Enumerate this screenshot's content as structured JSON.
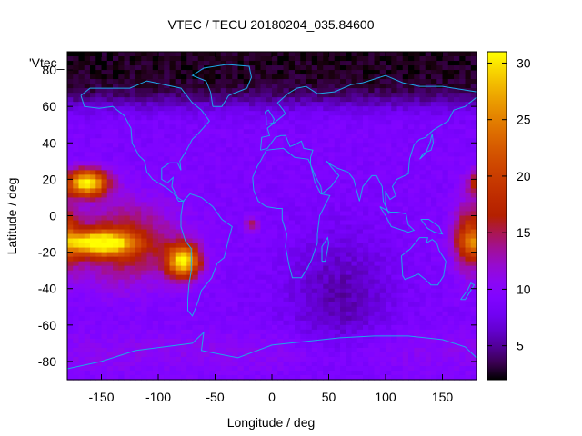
{
  "chart_data": {
    "type": "heatmap",
    "title": "VTEC / TECU 20180204_035.84600",
    "xlabel": "Longitude / deg",
    "ylabel": "Latitude / deg",
    "key_label": "'Vtec_",
    "xlim": [
      -180,
      180
    ],
    "ylim": [
      -90,
      90
    ],
    "xticks": [
      -150,
      -100,
      -50,
      0,
      50,
      100,
      150
    ],
    "yticks": [
      -80,
      -60,
      -40,
      -20,
      0,
      20,
      40,
      60,
      80
    ],
    "colorbar": {
      "min": 2,
      "max": 31,
      "ticks": [
        5,
        10,
        15,
        20,
        25,
        30
      ],
      "palette": "black-purple-red-yellow"
    },
    "grid": false,
    "features": [
      {
        "name": "east Pacific equatorial anomaly north crest",
        "lon": -163,
        "lat": 18,
        "peak": 31,
        "sigma_lon": 18,
        "sigma_lat": 7
      },
      {
        "name": "east Pacific equatorial anomaly south crest",
        "lon": -152,
        "lat": -15,
        "peak": 31,
        "sigma_lon": 28,
        "sigma_lat": 6
      },
      {
        "name": "South America crest",
        "lon": -78,
        "lat": -25,
        "peak": 30,
        "sigma_lon": 14,
        "sigma_lat": 9
      },
      {
        "name": "dateline west crest",
        "lon": 175,
        "lat": -12,
        "peak": 20,
        "sigma_lon": 14,
        "sigma_lat": 18
      },
      {
        "name": "South Atlantic spot",
        "lon": -18,
        "lat": -5,
        "peak": 15,
        "sigma_lon": 6,
        "sigma_lat": 4
      }
    ],
    "background_vtec": 9,
    "polar_north_vtec": 3,
    "night_minimum": {
      "lon": 60,
      "lat": -45,
      "vtec": 5
    }
  }
}
